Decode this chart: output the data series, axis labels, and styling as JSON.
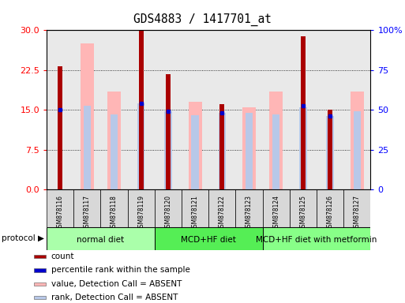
{
  "title": "GDS4883 / 1417701_at",
  "samples": [
    "GSM878116",
    "GSM878117",
    "GSM878118",
    "GSM878119",
    "GSM878120",
    "GSM878121",
    "GSM878122",
    "GSM878123",
    "GSM878124",
    "GSM878125",
    "GSM878126",
    "GSM878127"
  ],
  "count_values": [
    23.2,
    0,
    0,
    30.0,
    21.8,
    0,
    16.0,
    0,
    0,
    28.8,
    15.0,
    0
  ],
  "value_absent": [
    0,
    27.5,
    18.5,
    0,
    0,
    16.5,
    0,
    15.5,
    18.5,
    0,
    0,
    18.5
  ],
  "rank_absent": [
    0,
    15.7,
    14.2,
    16.2,
    14.7,
    14.0,
    14.5,
    14.5,
    14.2,
    15.5,
    13.8,
    14.7
  ],
  "percentile_rank": [
    15.0,
    0,
    0,
    16.2,
    14.8,
    0,
    14.5,
    0,
    0,
    15.8,
    13.9,
    0
  ],
  "groups": [
    {
      "label": "normal diet",
      "start": 0,
      "end": 3,
      "color": "#aaffaa"
    },
    {
      "label": "MCD+HF diet",
      "start": 4,
      "end": 7,
      "color": "#55ee55"
    },
    {
      "label": "MCD+HF diet with metformin",
      "start": 8,
      "end": 11,
      "color": "#88ff88"
    }
  ],
  "left_ylim": [
    0,
    30
  ],
  "right_ylim": [
    0,
    100
  ],
  "left_yticks": [
    0,
    7.5,
    15,
    22.5,
    30
  ],
  "right_yticks": [
    0,
    25,
    50,
    75,
    100
  ],
  "right_yticklabels": [
    "0",
    "25",
    "50",
    "75",
    "100%"
  ],
  "count_color": "#aa0000",
  "value_absent_color": "#ffb6b6",
  "rank_absent_color": "#b8c8e8",
  "percentile_color": "#0000cc",
  "col_bg_color": "#d8d8d8",
  "legend_items": [
    {
      "color": "#aa0000",
      "label": "count"
    },
    {
      "color": "#0000cc",
      "label": "percentile rank within the sample"
    },
    {
      "color": "#ffb6b6",
      "label": "value, Detection Call = ABSENT"
    },
    {
      "color": "#b8c8e8",
      "label": "rank, Detection Call = ABSENT"
    }
  ],
  "protocol_label": "protocol"
}
